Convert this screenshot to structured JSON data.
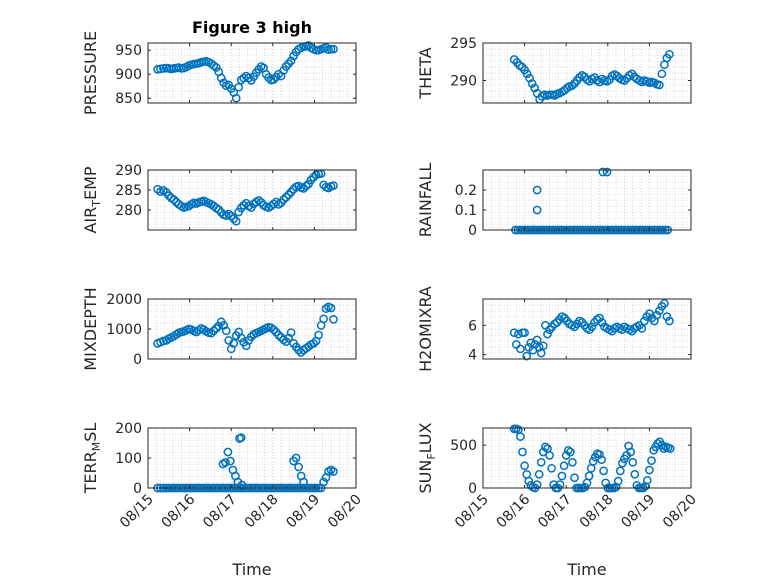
{
  "figure": {
    "title": "Figure 3 high",
    "marker_color": "#0072BD",
    "axis_color": "#262626",
    "grid_color": "#bdbdbd"
  },
  "chart_data": [
    {
      "type": "scatter",
      "ylabel": "PRESSURE",
      "xlabel": "",
      "title": "Figure 3 high",
      "xlim": [
        0,
        5
      ],
      "ylim": [
        840,
        965
      ],
      "yticks": [
        850,
        900,
        950
      ],
      "xticks": [
        0,
        1,
        2,
        3,
        4,
        5
      ],
      "xticklabels": [],
      "x": [
        0.23,
        0.3,
        0.37,
        0.44,
        0.5,
        0.56,
        0.62,
        0.68,
        0.74,
        0.8,
        0.86,
        0.92,
        0.98,
        1.04,
        1.1,
        1.16,
        1.22,
        1.28,
        1.34,
        1.4,
        1.46,
        1.52,
        1.58,
        1.64,
        1.7,
        1.76,
        1.82,
        1.88,
        1.94,
        2.0,
        2.06,
        2.12,
        2.18,
        2.24,
        2.3,
        2.36,
        2.42,
        2.48,
        2.54,
        2.6,
        2.66,
        2.72,
        2.78,
        2.84,
        2.9,
        2.96,
        3.02,
        3.08,
        3.14,
        3.2,
        3.26,
        3.32,
        3.38,
        3.44,
        3.5,
        3.56,
        3.62,
        3.68,
        3.74,
        3.8,
        3.86,
        3.92,
        3.98,
        4.04,
        4.1,
        4.16,
        4.22,
        4.28,
        4.34,
        4.4,
        4.46
      ],
      "y": [
        910,
        911,
        912,
        913,
        912,
        911,
        912,
        913,
        914,
        912,
        913,
        915,
        918,
        920,
        921,
        922,
        923,
        925,
        926,
        927,
        925,
        922,
        918,
        914,
        905,
        892,
        882,
        876,
        878,
        870,
        862,
        850,
        873,
        888,
        892,
        896,
        892,
        887,
        895,
        903,
        910,
        916,
        913,
        900,
        893,
        888,
        889,
        894,
        900,
        896,
        908,
        916,
        922,
        928,
        938,
        946,
        952,
        955,
        957,
        958,
        960,
        955,
        952,
        950,
        950,
        952,
        954,
        956,
        951,
        952,
        952
      ]
    },
    {
      "type": "scatter",
      "ylabel": "THETA",
      "xlabel": "",
      "xlim": [
        0,
        5
      ],
      "ylim": [
        287,
        295
      ],
      "yticks": [
        290,
        295
      ],
      "xticks": [
        0,
        1,
        2,
        3,
        4,
        5
      ],
      "xticklabels": [],
      "x": [
        0.75,
        0.82,
        0.88,
        0.94,
        1.0,
        1.06,
        1.12,
        1.18,
        1.24,
        1.3,
        1.36,
        1.42,
        1.48,
        1.54,
        1.6,
        1.66,
        1.72,
        1.78,
        1.84,
        1.9,
        1.96,
        2.02,
        2.08,
        2.14,
        2.2,
        2.26,
        2.32,
        2.38,
        2.44,
        2.5,
        2.56,
        2.62,
        2.68,
        2.74,
        2.8,
        2.86,
        2.92,
        2.98,
        3.04,
        3.1,
        3.16,
        3.22,
        3.28,
        3.34,
        3.4,
        3.46,
        3.52,
        3.58,
        3.64,
        3.7,
        3.76,
        3.82,
        3.88,
        3.94,
        4.0,
        4.06,
        4.12,
        4.18,
        4.24,
        4.3,
        4.36,
        4.42,
        4.48
      ],
      "y": [
        292.8,
        292.4,
        292.0,
        291.8,
        291.4,
        290.9,
        290.3,
        289.6,
        289.0,
        288.3,
        287.5,
        287.9,
        288.1,
        288.0,
        288.1,
        288.1,
        288.0,
        288.2,
        288.3,
        288.5,
        288.7,
        289.0,
        289.2,
        289.3,
        289.6,
        290.0,
        290.4,
        290.7,
        290.5,
        290.1,
        289.9,
        290.2,
        290.4,
        290.0,
        289.8,
        290.2,
        290.0,
        289.9,
        290.1,
        290.6,
        290.8,
        290.6,
        290.3,
        290.1,
        290.0,
        290.3,
        290.7,
        290.9,
        290.5,
        290.2,
        290.0,
        289.8,
        290.0,
        289.9,
        289.7,
        289.8,
        289.7,
        289.5,
        289.4,
        290.9,
        292.1,
        293.0,
        293.5
      ]
    },
    {
      "type": "scatter",
      "ylabel": "AIR_TEMP",
      "xlabel": "",
      "xlim": [
        0,
        5
      ],
      "ylim": [
        275,
        290
      ],
      "yticks": [
        280,
        285,
        290
      ],
      "xticks": [
        0,
        1,
        2,
        3,
        4,
        5
      ],
      "xticklabels": [],
      "x": [
        0.23,
        0.3,
        0.37,
        0.44,
        0.5,
        0.56,
        0.62,
        0.68,
        0.74,
        0.8,
        0.86,
        0.92,
        0.98,
        1.04,
        1.1,
        1.16,
        1.22,
        1.28,
        1.34,
        1.4,
        1.46,
        1.52,
        1.58,
        1.64,
        1.7,
        1.76,
        1.82,
        1.88,
        1.94,
        2.0,
        2.06,
        2.12,
        2.18,
        2.24,
        2.3,
        2.36,
        2.42,
        2.48,
        2.54,
        2.6,
        2.66,
        2.72,
        2.78,
        2.84,
        2.9,
        2.96,
        3.02,
        3.08,
        3.14,
        3.2,
        3.26,
        3.32,
        3.38,
        3.44,
        3.5,
        3.56,
        3.62,
        3.68,
        3.74,
        3.8,
        3.86,
        3.92,
        3.98,
        4.04,
        4.1,
        4.16,
        4.22,
        4.28,
        4.34,
        4.4,
        4.46
      ],
      "y": [
        285.2,
        284.6,
        284.9,
        284.4,
        283.6,
        283.0,
        282.6,
        282.0,
        281.4,
        281.0,
        280.6,
        280.8,
        281.0,
        281.4,
        281.8,
        281.6,
        281.9,
        282.1,
        282.3,
        282.0,
        281.7,
        281.4,
        281.0,
        280.5,
        280.1,
        279.4,
        278.8,
        278.6,
        279.0,
        278.5,
        277.8,
        277.2,
        279.5,
        280.5,
        281.2,
        281.7,
        281.0,
        280.6,
        281.5,
        282.0,
        282.4,
        281.9,
        281.2,
        280.8,
        280.6,
        281.0,
        281.5,
        282.0,
        281.4,
        281.8,
        282.6,
        283.2,
        283.8,
        284.5,
        285.2,
        285.8,
        286.0,
        285.6,
        285.4,
        286.0,
        286.5,
        287.5,
        288.2,
        288.8,
        289.0,
        289.1,
        286.3,
        285.7,
        285.5,
        285.9,
        286.1
      ]
    },
    {
      "type": "scatter",
      "ylabel": "RAINFALL",
      "xlabel": "",
      "xlim": [
        0,
        5
      ],
      "ylim": [
        0,
        0.3
      ],
      "yticks": [
        0,
        0.1,
        0.2
      ],
      "xticks": [
        0,
        1,
        2,
        3,
        4,
        5
      ],
      "xticklabels": [],
      "x": [
        0.78,
        0.84,
        0.9,
        0.96,
        1.02,
        1.08,
        1.14,
        1.2,
        1.26,
        1.32,
        1.38,
        1.44,
        1.5,
        1.56,
        1.62,
        1.68,
        1.74,
        1.8,
        1.86,
        1.92,
        1.98,
        2.04,
        2.1,
        2.16,
        2.22,
        2.28,
        2.34,
        2.4,
        2.46,
        2.52,
        2.58,
        2.64,
        2.7,
        2.76,
        2.82,
        2.88,
        2.94,
        3.0,
        3.06,
        3.12,
        3.18,
        3.24,
        3.3,
        3.36,
        3.42,
        3.48,
        3.54,
        3.6,
        3.66,
        3.72,
        3.78,
        3.84,
        3.9,
        3.96,
        4.02,
        4.08,
        4.14,
        4.2,
        4.26,
        4.32,
        4.38,
        4.44,
        1.3,
        1.3,
        2.88,
        2.98
      ],
      "y": [
        0,
        0,
        0,
        0,
        0,
        0,
        0,
        0,
        0,
        0,
        0,
        0,
        0,
        0,
        0,
        0,
        0,
        0,
        0,
        0,
        0,
        0,
        0,
        0,
        0,
        0,
        0,
        0,
        0,
        0,
        0,
        0,
        0,
        0,
        0,
        0,
        0,
        0,
        0,
        0,
        0,
        0,
        0,
        0,
        0,
        0,
        0,
        0,
        0,
        0,
        0,
        0,
        0,
        0,
        0,
        0,
        0,
        0,
        0,
        0,
        0,
        0,
        0.2,
        0.1,
        0.29,
        0.29
      ]
    },
    {
      "type": "scatter",
      "ylabel": "MIXDEPTH",
      "xlabel": "",
      "xlim": [
        0,
        5
      ],
      "ylim": [
        0,
        2000
      ],
      "yticks": [
        0,
        1000,
        2000
      ],
      "xticks": [
        0,
        1,
        2,
        3,
        4,
        5
      ],
      "xticklabels": [],
      "x": [
        0.23,
        0.3,
        0.37,
        0.44,
        0.5,
        0.56,
        0.62,
        0.68,
        0.74,
        0.8,
        0.86,
        0.92,
        0.98,
        1.04,
        1.1,
        1.16,
        1.22,
        1.28,
        1.34,
        1.4,
        1.46,
        1.52,
        1.58,
        1.64,
        1.7,
        1.76,
        1.82,
        1.88,
        1.94,
        2.0,
        2.06,
        2.12,
        2.18,
        2.24,
        2.3,
        2.36,
        2.42,
        2.48,
        2.54,
        2.6,
        2.66,
        2.72,
        2.78,
        2.84,
        2.9,
        2.96,
        3.02,
        3.08,
        3.14,
        3.2,
        3.26,
        3.32,
        3.38,
        3.44,
        3.5,
        3.56,
        3.62,
        3.68,
        3.74,
        3.8,
        3.86,
        3.92,
        3.98,
        4.04,
        4.1,
        4.16,
        4.22,
        4.28,
        4.34,
        4.4,
        4.46
      ],
      "y": [
        520,
        560,
        600,
        620,
        680,
        720,
        760,
        820,
        870,
        900,
        920,
        960,
        1000,
        980,
        940,
        900,
        960,
        1020,
        980,
        920,
        880,
        860,
        940,
        1020,
        1100,
        1240,
        1120,
        940,
        620,
        340,
        520,
        780,
        900,
        700,
        560,
        440,
        620,
        740,
        820,
        860,
        900,
        940,
        980,
        1020,
        1060,
        1040,
        980,
        900,
        800,
        720,
        640,
        580,
        700,
        880,
        520,
        400,
        300,
        220,
        300,
        360,
        420,
        480,
        520,
        600,
        800,
        1120,
        1340,
        1680,
        1740,
        1700,
        1320
      ]
    },
    {
      "type": "scatter",
      "ylabel": "H2OMIXRA",
      "xlabel": "",
      "xlim": [
        0,
        5
      ],
      "ylim": [
        3.7,
        7.8
      ],
      "yticks": [
        4,
        6
      ],
      "xticks": [
        0,
        1,
        2,
        3,
        4,
        5
      ],
      "xticklabels": [],
      "x": [
        0.75,
        0.8,
        0.85,
        0.9,
        0.95,
        1.0,
        1.05,
        1.1,
        1.15,
        1.2,
        1.25,
        1.3,
        1.35,
        1.4,
        1.45,
        1.5,
        1.55,
        1.6,
        1.66,
        1.72,
        1.78,
        1.84,
        1.9,
        1.96,
        2.02,
        2.08,
        2.14,
        2.2,
        2.26,
        2.32,
        2.38,
        2.44,
        2.5,
        2.56,
        2.62,
        2.68,
        2.74,
        2.8,
        2.86,
        2.92,
        2.98,
        3.04,
        3.1,
        3.16,
        3.22,
        3.28,
        3.34,
        3.4,
        3.46,
        3.52,
        3.58,
        3.64,
        3.7,
        3.76,
        3.82,
        3.88,
        3.94,
        4.0,
        4.06,
        4.12,
        4.18,
        4.24,
        4.3,
        4.36,
        4.42,
        4.48
      ],
      "y": [
        5.5,
        4.7,
        5.4,
        4.4,
        5.5,
        5.5,
        3.9,
        4.5,
        4.8,
        4.3,
        4.7,
        5.0,
        4.5,
        4.1,
        4.6,
        6.0,
        5.4,
        5.7,
        5.9,
        6.1,
        6.2,
        6.4,
        6.6,
        6.5,
        6.3,
        6.1,
        6.0,
        5.9,
        6.1,
        6.3,
        6.2,
        6.0,
        5.8,
        5.7,
        5.9,
        6.2,
        6.4,
        6.5,
        6.2,
        5.9,
        5.8,
        5.7,
        5.6,
        5.8,
        5.9,
        5.8,
        5.7,
        5.9,
        5.8,
        5.7,
        5.6,
        5.8,
        5.9,
        6.0,
        5.8,
        6.3,
        6.6,
        6.8,
        6.5,
        6.3,
        6.7,
        7.0,
        7.3,
        7.5,
        6.6,
        6.3
      ]
    },
    {
      "type": "scatter",
      "ylabel": "TERR_MSL",
      "xlabel": "Time",
      "xlim": [
        0,
        5
      ],
      "ylim": [
        0,
        200
      ],
      "yticks": [
        0,
        100,
        200
      ],
      "xticks": [
        0,
        1,
        2,
        3,
        4,
        5
      ],
      "xticklabels": [
        "08/15",
        "08/16",
        "08/17",
        "08/18",
        "08/19",
        "08/20"
      ],
      "x": [
        0.23,
        0.3,
        0.37,
        0.44,
        0.5,
        0.56,
        0.62,
        0.68,
        0.74,
        0.8,
        0.86,
        0.92,
        0.98,
        1.04,
        1.1,
        1.16,
        1.22,
        1.28,
        1.34,
        1.4,
        1.46,
        1.52,
        1.58,
        1.64,
        1.7,
        1.76,
        1.82,
        1.88,
        1.94,
        2.0,
        2.06,
        2.12,
        2.18,
        2.24,
        2.3,
        2.36,
        2.42,
        2.48,
        2.54,
        2.6,
        2.66,
        2.72,
        2.78,
        2.84,
        2.9,
        2.96,
        3.02,
        3.08,
        3.14,
        3.2,
        3.26,
        3.32,
        3.38,
        3.44,
        3.5,
        3.56,
        3.62,
        3.68,
        3.74,
        3.8,
        3.86,
        3.92,
        3.98,
        4.04,
        4.1,
        4.16,
        4.22,
        4.28,
        4.34,
        4.4,
        4.46,
        2.2,
        2.24,
        2.1,
        2.16,
        2.26,
        1.8,
        1.86,
        1.92,
        1.98,
        2.04,
        3.5,
        3.56,
        3.62,
        3.68,
        3.74
      ],
      "y": [
        0,
        0,
        0,
        0,
        0,
        0,
        0,
        0,
        0,
        0,
        0,
        0,
        0,
        0,
        0,
        0,
        0,
        0,
        0,
        0,
        0,
        0,
        0,
        0,
        0,
        0,
        0,
        0,
        0,
        0,
        0,
        0,
        0,
        0,
        0,
        0,
        0,
        0,
        0,
        0,
        0,
        0,
        0,
        0,
        0,
        0,
        0,
        0,
        0,
        0,
        0,
        0,
        0,
        0,
        0,
        0,
        0,
        0,
        0,
        0,
        0,
        0,
        0,
        0,
        0,
        0,
        20,
        35,
        55,
        60,
        55,
        165,
        168,
        40,
        20,
        10,
        80,
        85,
        120,
        90,
        60,
        90,
        100,
        70,
        40,
        20
      ]
    },
    {
      "type": "scatter",
      "ylabel": "SUN_FLUX",
      "xlabel": "Time",
      "xlim": [
        0,
        5
      ],
      "ylim": [
        0,
        700
      ],
      "yticks": [
        0,
        500
      ],
      "xticks": [
        0,
        1,
        2,
        3,
        4,
        5
      ],
      "xticklabels": [
        "08/15",
        "08/16",
        "08/17",
        "08/18",
        "08/19",
        "08/20"
      ],
      "x": [
        0.75,
        0.8,
        0.85,
        0.9,
        0.95,
        1.0,
        1.05,
        1.1,
        1.15,
        1.2,
        1.25,
        1.3,
        1.35,
        1.4,
        1.45,
        1.5,
        1.55,
        1.6,
        1.65,
        1.7,
        1.75,
        1.8,
        1.85,
        1.9,
        1.95,
        2.0,
        2.05,
        2.1,
        2.15,
        2.2,
        2.25,
        2.3,
        2.35,
        2.4,
        2.45,
        2.5,
        2.55,
        2.6,
        2.65,
        2.7,
        2.75,
        2.8,
        2.85,
        2.9,
        2.95,
        3.0,
        3.05,
        3.1,
        3.15,
        3.2,
        3.25,
        3.3,
        3.35,
        3.4,
        3.45,
        3.5,
        3.55,
        3.6,
        3.65,
        3.7,
        3.75,
        3.8,
        3.85,
        3.9,
        3.95,
        4.0,
        4.05,
        4.1,
        4.15,
        4.2,
        4.25,
        4.3,
        4.35,
        4.4,
        4.45,
        4.5
      ],
      "y": [
        690,
        690,
        680,
        600,
        420,
        260,
        160,
        80,
        30,
        10,
        0,
        40,
        160,
        300,
        420,
        480,
        460,
        380,
        230,
        40,
        0,
        0,
        40,
        140,
        260,
        380,
        440,
        420,
        300,
        120,
        0,
        0,
        0,
        0,
        10,
        60,
        140,
        230,
        310,
        360,
        400,
        390,
        330,
        200,
        60,
        0,
        0,
        0,
        0,
        10,
        80,
        200,
        290,
        340,
        380,
        490,
        420,
        300,
        160,
        30,
        0,
        0,
        0,
        20,
        90,
        210,
        320,
        440,
        480,
        520,
        540,
        500,
        460,
        480,
        470,
        460
      ]
    }
  ]
}
